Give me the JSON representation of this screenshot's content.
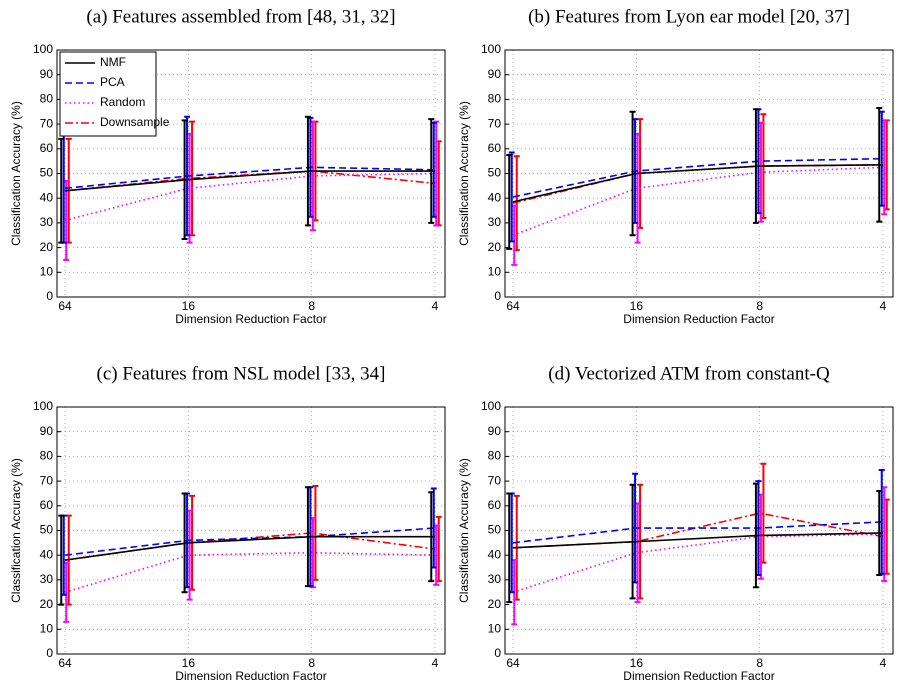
{
  "chart_data": [
    {
      "type": "line",
      "title": "(a) Features assembled from [48, 31, 32]",
      "xlabel": "Dimension Reduction Factor",
      "ylabel": "Classification Accuracy (%)",
      "categories": [
        "64",
        "16",
        "8",
        "4"
      ],
      "ylim": [
        0,
        100
      ],
      "yticks": [
        0,
        10,
        20,
        30,
        40,
        50,
        60,
        70,
        80,
        90,
        100
      ],
      "grid": true,
      "legend": "upper left",
      "series": [
        {
          "name": "NMF",
          "color": "#000000",
          "linestyle": "solid",
          "values": [
            43,
            47.5,
            51,
            51
          ],
          "errors": [
            21,
            24,
            22,
            21
          ]
        },
        {
          "name": "PCA",
          "color": "#0000ff",
          "linestyle": "dashed",
          "values": [
            44,
            49,
            52.5,
            51.5
          ],
          "errors": [
            22,
            24,
            20,
            19
          ]
        },
        {
          "name": "Random",
          "color": "#ff00ff",
          "linestyle": "dotted",
          "values": [
            31,
            44,
            49,
            50
          ],
          "errors": [
            16,
            22,
            22,
            21
          ]
        },
        {
          "name": "Downsample",
          "color": "#ff0000",
          "linestyle": "dashdot",
          "values": [
            43,
            48,
            51,
            46
          ],
          "errors": [
            21,
            23,
            20,
            17
          ]
        }
      ]
    },
    {
      "type": "line",
      "title": "(b) Features from Lyon ear model [20, 37]",
      "xlabel": "Dimension Reduction Factor",
      "ylabel": "Classification Accuracy (%)",
      "categories": [
        "64",
        "16",
        "8",
        "4"
      ],
      "ylim": [
        0,
        100
      ],
      "yticks": [
        0,
        10,
        20,
        30,
        40,
        50,
        60,
        70,
        80,
        90,
        100
      ],
      "grid": true,
      "series": [
        {
          "name": "NMF",
          "color": "#000000",
          "linestyle": "solid",
          "values": [
            38.5,
            50,
            53,
            53.5
          ],
          "errors": [
            19,
            25,
            23,
            23
          ]
        },
        {
          "name": "PCA",
          "color": "#0000ff",
          "linestyle": "dashed",
          "values": [
            40.5,
            51,
            55,
            56
          ],
          "errors": [
            18,
            21,
            21,
            19
          ]
        },
        {
          "name": "Random",
          "color": "#ff00ff",
          "linestyle": "dotted",
          "values": [
            25,
            44,
            50.5,
            52.5
          ],
          "errors": [
            12,
            22,
            20,
            19
          ]
        },
        {
          "name": "Downsample",
          "color": "#ff0000",
          "linestyle": "dashdot",
          "values": [
            38,
            50,
            53,
            53.5
          ],
          "errors": [
            19,
            22,
            21,
            18
          ]
        }
      ]
    },
    {
      "type": "line",
      "title": "(c) Features from NSL model [33, 34]",
      "xlabel": "Dimension Reduction Factor",
      "ylabel": "Classification Accuracy (%)",
      "categories": [
        "64",
        "16",
        "8",
        "4"
      ],
      "ylim": [
        0,
        100
      ],
      "yticks": [
        0,
        10,
        20,
        30,
        40,
        50,
        60,
        70,
        80,
        90,
        100
      ],
      "grid": true,
      "series": [
        {
          "name": "NMF",
          "color": "#000000",
          "linestyle": "solid",
          "values": [
            38,
            45,
            47.5,
            47.5
          ],
          "errors": [
            18,
            20,
            20,
            18
          ]
        },
        {
          "name": "PCA",
          "color": "#0000ff",
          "linestyle": "dashed",
          "values": [
            40,
            46,
            47.5,
            51
          ],
          "errors": [
            16,
            19,
            20,
            16
          ]
        },
        {
          "name": "Random",
          "color": "#ff00ff",
          "linestyle": "dotted",
          "values": [
            25,
            40,
            41,
            40
          ],
          "errors": [
            12,
            18,
            14,
            12
          ]
        },
        {
          "name": "Downsample",
          "color": "#ff0000",
          "linestyle": "dashdot",
          "values": [
            38,
            45,
            49,
            42.5
          ],
          "errors": [
            18,
            19,
            19,
            13
          ]
        }
      ]
    },
    {
      "type": "line",
      "title": "(d) Vectorized ATM from constant-Q",
      "xlabel": "Dimension Reduction Factor",
      "ylabel": "Classification Accuracy (%)",
      "categories": [
        "64",
        "16",
        "8",
        "4"
      ],
      "ylim": [
        0,
        100
      ],
      "yticks": [
        0,
        10,
        20,
        30,
        40,
        50,
        60,
        70,
        80,
        90,
        100
      ],
      "grid": true,
      "series": [
        {
          "name": "NMF",
          "color": "#000000",
          "linestyle": "solid",
          "values": [
            43,
            45.5,
            48,
            49
          ],
          "errors": [
            22,
            23,
            21,
            17
          ]
        },
        {
          "name": "PCA",
          "color": "#0000ff",
          "linestyle": "dashed",
          "values": [
            45,
            51,
            51,
            53.5
          ],
          "errors": [
            20,
            22,
            19,
            21
          ]
        },
        {
          "name": "Random",
          "color": "#ff00ff",
          "linestyle": "dotted",
          "values": [
            25,
            41,
            47.5,
            48.5
          ],
          "errors": [
            13,
            20,
            17,
            19
          ]
        },
        {
          "name": "Downsample",
          "color": "#ff0000",
          "linestyle": "dashdot",
          "values": [
            43,
            45.5,
            57,
            47.5
          ],
          "errors": [
            21,
            23,
            20,
            15
          ]
        }
      ]
    }
  ]
}
